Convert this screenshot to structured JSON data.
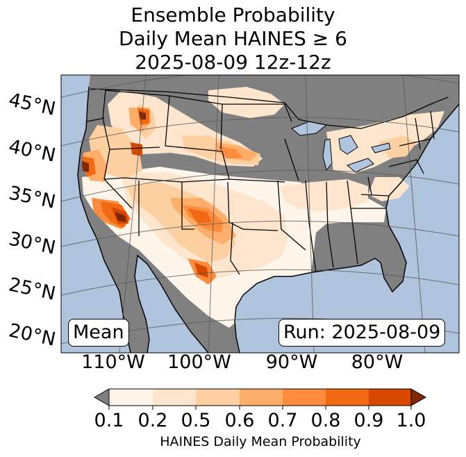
{
  "title": {
    "line1": "Ensemble Probability",
    "line2": "Daily Mean HAINES ≥ 6",
    "line3": "2025-08-09 12z-12z"
  },
  "map": {
    "ocean_color": "#b0c4de",
    "land_background_color": "#808080",
    "region": "CONUS"
  },
  "lat_labels": [
    "45°N",
    "40°N",
    "35°N",
    "30°N",
    "25°N",
    "20°N"
  ],
  "lon_labels": [
    "110°W",
    "100°W",
    "90°W",
    "80°W"
  ],
  "stat_label": "Mean",
  "run_label": "Run: 2025-08-09",
  "colorbar": {
    "label": "HAINES Daily Mean Probability",
    "ticks": [
      "0.1",
      "0.2",
      "0.5",
      "0.6",
      "0.7",
      "0.8",
      "0.9",
      "1.0"
    ],
    "under_color": "#808080",
    "over_color": "#7f2704",
    "colors": [
      "#fff5eb",
      "#fee6ce",
      "#fdd0a2",
      "#fdae6b",
      "#fd8d3c",
      "#f16913",
      "#d94801"
    ]
  }
}
